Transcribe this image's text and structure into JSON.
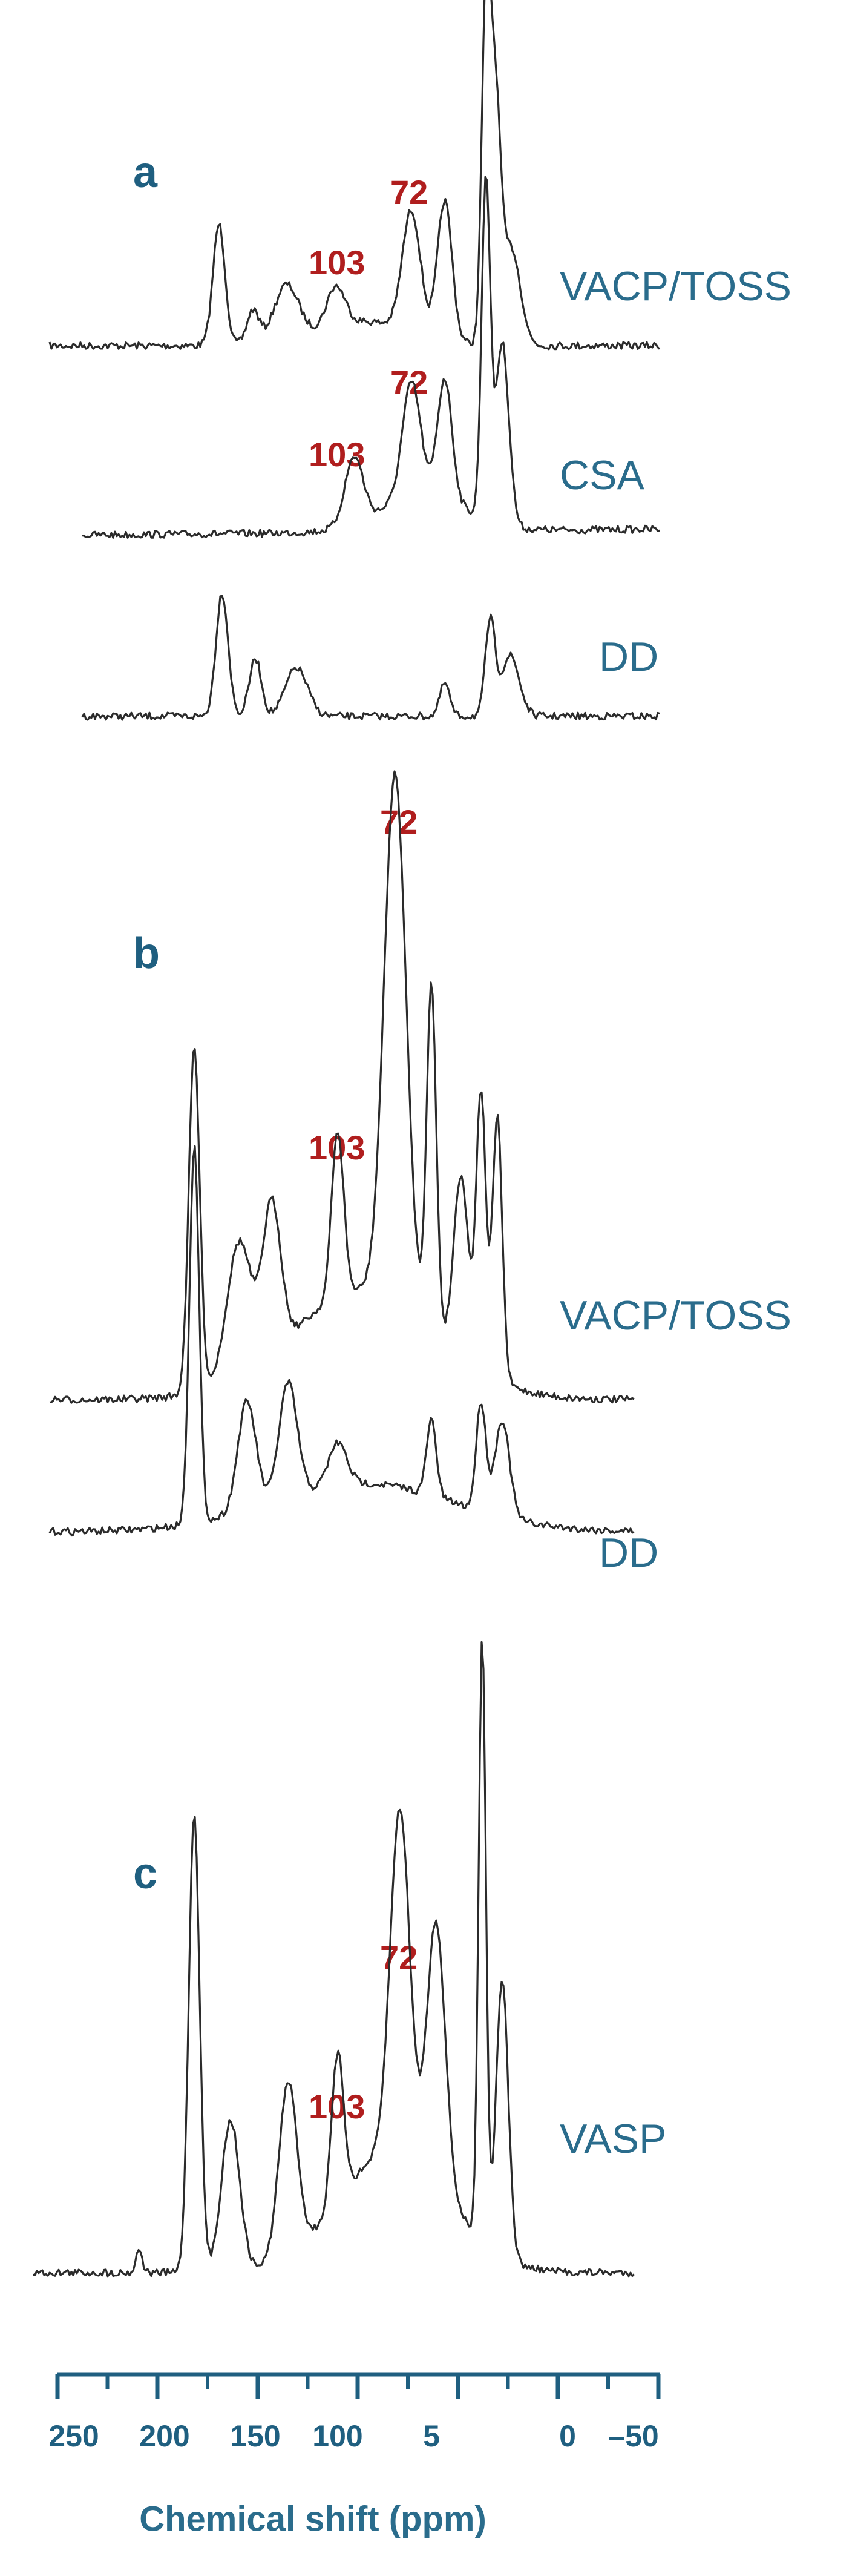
{
  "panels": [
    {
      "label": "a",
      "traces": [
        {
          "name": "VACP/TOSS",
          "peak_labels": [
            "103",
            "72"
          ]
        },
        {
          "name": "CSA",
          "peak_labels": [
            "103",
            "72"
          ]
        },
        {
          "name": "DD"
        }
      ]
    },
    {
      "label": "b",
      "traces": [
        {
          "name": "VACP/TOSS",
          "peak_labels": [
            "103",
            "72"
          ]
        },
        {
          "name": "DD"
        }
      ]
    },
    {
      "label": "c",
      "traces": [
        {
          "name": "VASP",
          "peak_labels": [
            "103",
            "72"
          ]
        }
      ]
    }
  ],
  "axis": {
    "tick_labels": [
      "250",
      "200",
      "150",
      "100",
      "5",
      "0",
      "–50"
    ],
    "title": "Chemical shift (ppm)"
  }
}
